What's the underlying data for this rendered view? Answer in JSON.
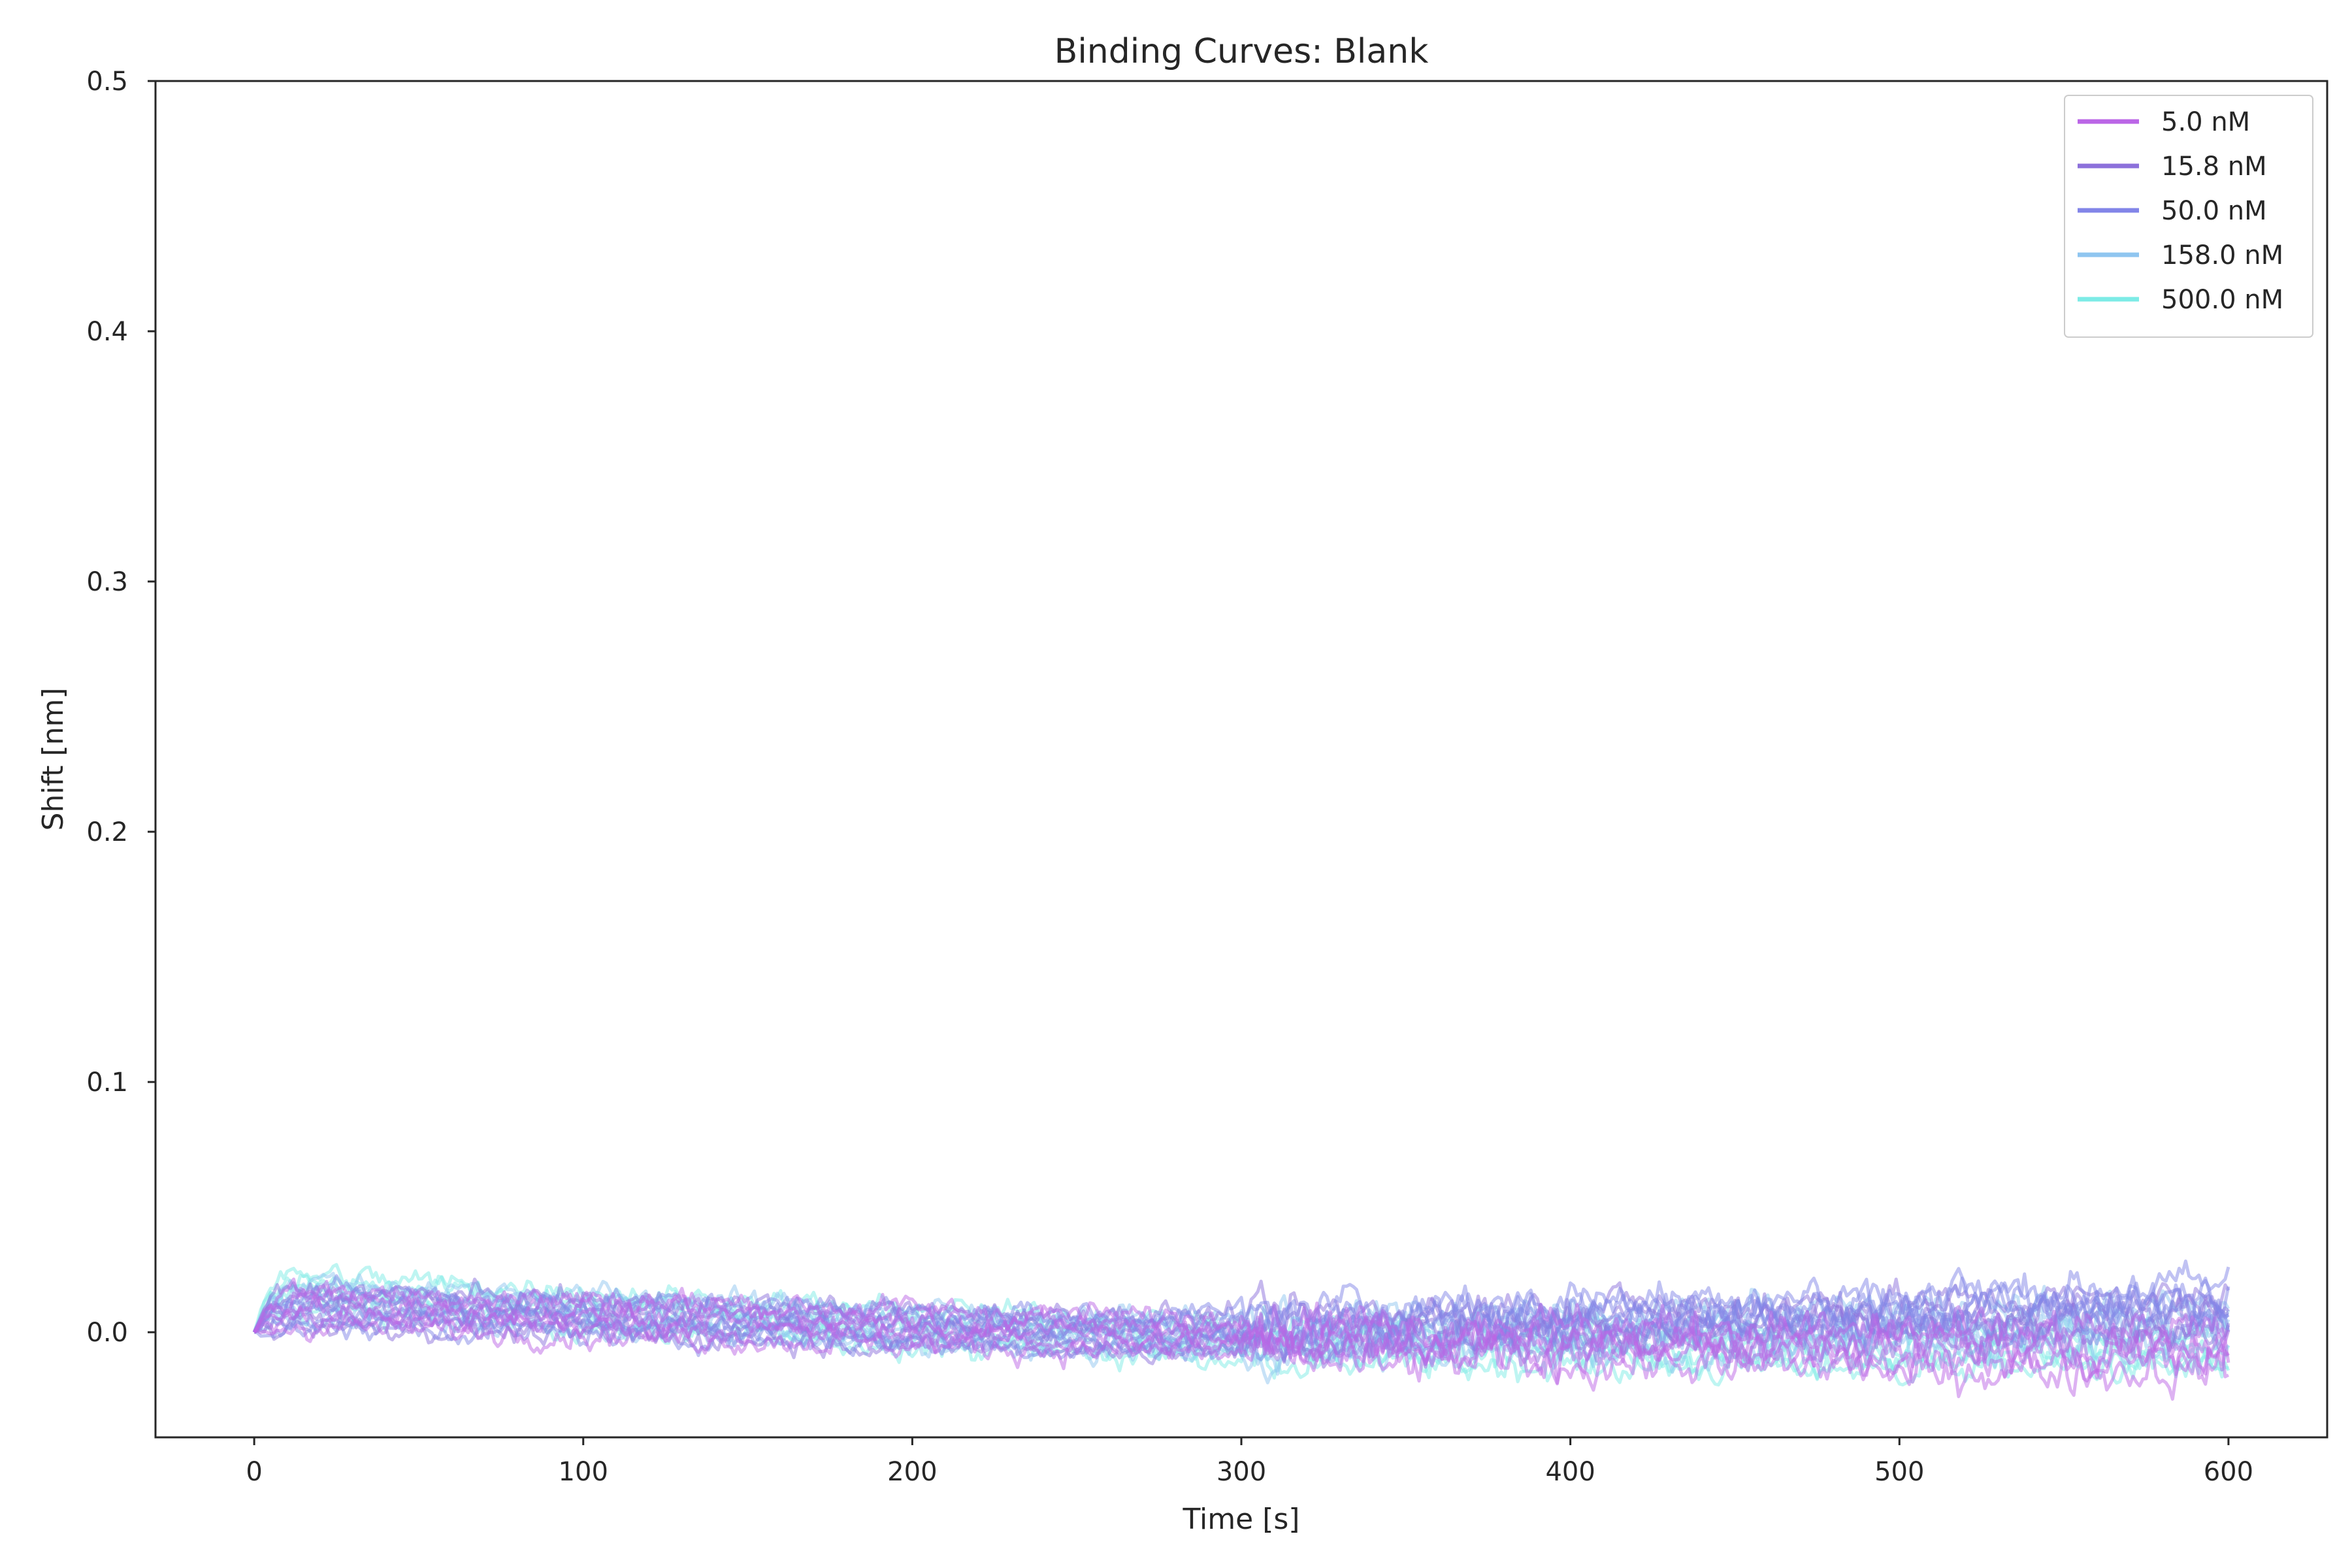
{
  "chart_data": {
    "type": "line",
    "title": "Binding Curves: Blank",
    "xlabel": "Time [s]",
    "ylabel": "Shift [nm]",
    "xlim": [
      -30,
      630
    ],
    "ylim": [
      -0.042,
      0.5
    ],
    "x_ticks": [
      0,
      100,
      200,
      300,
      400,
      500,
      600
    ],
    "x_tick_labels": [
      "0",
      "100",
      "200",
      "300",
      "400",
      "500",
      "600"
    ],
    "y_ticks": [
      0.0,
      0.1,
      0.2,
      0.3,
      0.4,
      0.5
    ],
    "y_tick_labels": [
      "0.0",
      "0.1",
      "0.2",
      "0.3",
      "0.4",
      "0.5"
    ],
    "grid": false,
    "legend_position": "top-right",
    "series": [
      {
        "name": "5.0 nM",
        "color": "#bb66e6",
        "x": [
          0,
          5,
          20,
          50,
          100,
          150,
          200,
          250,
          300,
          350,
          400,
          450,
          500,
          550,
          600
        ],
        "y": [
          0.0,
          0.008,
          0.01,
          0.008,
          0.006,
          0.004,
          0.002,
          0.0,
          -0.002,
          -0.004,
          -0.005,
          -0.006,
          -0.007,
          -0.008,
          -0.008
        ],
        "noise_before_300": 0.007,
        "noise_after_300": 0.012
      },
      {
        "name": "15.8 nM",
        "color": "#8c70db",
        "x": [
          0,
          5,
          20,
          50,
          100,
          150,
          200,
          250,
          300,
          350,
          400,
          450,
          500,
          550,
          600
        ],
        "y": [
          0.0,
          0.008,
          0.01,
          0.008,
          0.006,
          0.004,
          0.002,
          0.0,
          0.0,
          0.002,
          0.003,
          0.004,
          0.005,
          0.006,
          0.007
        ],
        "noise_before_300": 0.006,
        "noise_after_300": 0.01
      },
      {
        "name": "50.0 nM",
        "color": "#8285e8",
        "x": [
          0,
          5,
          20,
          50,
          100,
          150,
          200,
          250,
          300,
          350,
          400,
          450,
          500,
          550,
          600
        ],
        "y": [
          0.0,
          0.007,
          0.009,
          0.008,
          0.006,
          0.004,
          0.002,
          0.0,
          0.001,
          0.004,
          0.006,
          0.007,
          0.008,
          0.01,
          0.012
        ],
        "noise_before_300": 0.006,
        "noise_after_300": 0.011
      },
      {
        "name": "158.0 nM",
        "color": "#8fc5f0",
        "x": [
          0,
          5,
          20,
          50,
          100,
          150,
          200,
          250,
          300,
          350,
          400,
          450,
          500,
          550,
          600
        ],
        "y": [
          0.0,
          0.01,
          0.013,
          0.011,
          0.008,
          0.005,
          0.002,
          0.0,
          -0.002,
          -0.001,
          0.0,
          0.001,
          0.002,
          0.002,
          0.003
        ],
        "noise_before_300": 0.006,
        "noise_after_300": 0.01
      },
      {
        "name": "500.0 nM",
        "color": "#7debe6",
        "x": [
          0,
          5,
          20,
          50,
          100,
          150,
          200,
          250,
          300,
          350,
          400,
          450,
          500,
          550,
          600
        ],
        "y": [
          0.0,
          0.014,
          0.016,
          0.013,
          0.009,
          0.005,
          0.002,
          -0.001,
          -0.004,
          -0.005,
          -0.006,
          -0.007,
          -0.007,
          -0.007,
          -0.008
        ],
        "noise_before_300": 0.007,
        "noise_after_300": 0.009
      }
    ]
  }
}
